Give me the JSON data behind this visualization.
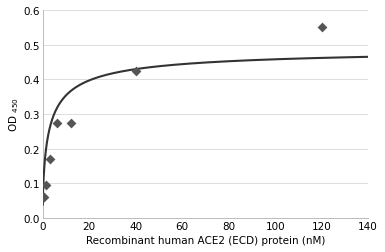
{
  "scatter_x": [
    0.3,
    0.6,
    1.5,
    3.0,
    6.0,
    12.0,
    40.0,
    120.0
  ],
  "scatter_y": [
    0.06,
    0.06,
    0.095,
    0.17,
    0.275,
    0.275,
    0.425,
    0.55
  ],
  "curve_Bmax": 0.455,
  "curve_Kd": 3.2,
  "curve_Hill": 0.72,
  "curve_baseline": 0.038,
  "xlabel": "Recombinant human ACE2 (ECD) protein (nM)",
  "ylabel": "OD",
  "ylabel_sub": "450",
  "xlim": [
    0,
    140
  ],
  "ylim": [
    0,
    0.6
  ],
  "xticks": [
    0,
    20,
    40,
    60,
    80,
    100,
    120,
    140
  ],
  "yticks": [
    0,
    0.1,
    0.2,
    0.3,
    0.4,
    0.5,
    0.6
  ],
  "marker_color": "#555555",
  "line_color": "#333333",
  "bg_color": "#ffffff",
  "grid_color": "#d8d8d8",
  "spine_color": "#bbbbbb",
  "marker_size": 5,
  "line_width": 1.5
}
